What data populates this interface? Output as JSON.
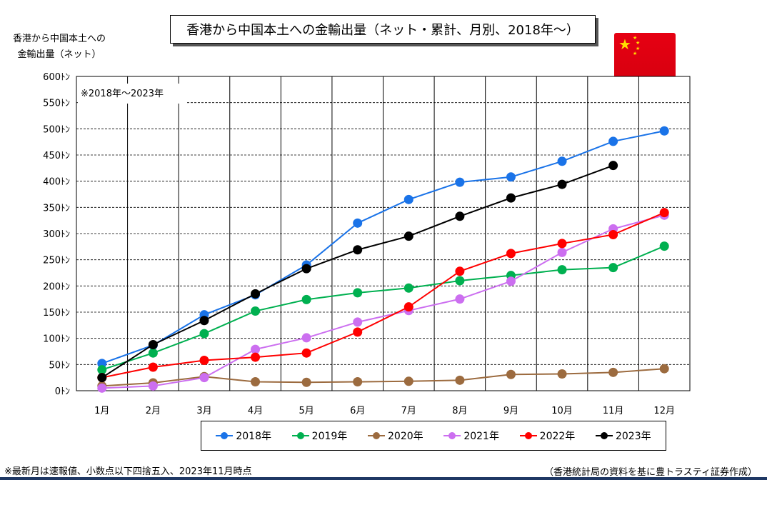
{
  "title": "香港から中国本土への金輸出量（ネット・累計、月別、2018年～）",
  "ylabel_line1": "香港から中国本土への",
  "ylabel_line2": "金輸出量（ネット）",
  "period_note": "※2018年～2023年",
  "footnote": "※最新月は速報値、小数点以下四捨五入、2023年11月時点",
  "source": "（香港統計局の資料を基に豊トラスティ証券作成）",
  "flag_icon": "china-flag-icon",
  "chart_data": {
    "type": "line",
    "categories": [
      "1月",
      "2月",
      "3月",
      "4月",
      "5月",
      "6月",
      "7月",
      "8月",
      "9月",
      "10月",
      "11月",
      "12月"
    ],
    "ylim": [
      0,
      600
    ],
    "yticks": [
      0,
      50,
      100,
      150,
      200,
      250,
      300,
      350,
      400,
      450,
      500,
      550,
      600
    ],
    "yunit": "ﾄﾝ",
    "grid": true,
    "legend_position": "bottom",
    "series": [
      {
        "name": "2018年",
        "color": "#1a73e8",
        "values": [
          52,
          87,
          145,
          183,
          240,
          320,
          365,
          398,
          408,
          438,
          476,
          496
        ]
      },
      {
        "name": "2019年",
        "color": "#00b050",
        "values": [
          40,
          72,
          109,
          152,
          174,
          187,
          196,
          210,
          220,
          231,
          235,
          276
        ]
      },
      {
        "name": "2020年",
        "color": "#9c6b3f",
        "values": [
          9,
          15,
          27,
          17,
          16,
          17,
          18,
          20,
          31,
          32,
          35,
          42
        ]
      },
      {
        "name": "2021年",
        "color": "#cc6ff0",
        "values": [
          5,
          9,
          25,
          79,
          101,
          131,
          153,
          175,
          209,
          264,
          309,
          335
        ]
      },
      {
        "name": "2022年",
        "color": "#ff0000",
        "values": [
          25,
          45,
          58,
          64,
          72,
          112,
          160,
          228,
          262,
          281,
          298,
          340
        ]
      },
      {
        "name": "2023年",
        "color": "#000000",
        "values": [
          25,
          88,
          134,
          185,
          233,
          269,
          295,
          333,
          368,
          394,
          430,
          null
        ]
      }
    ]
  }
}
